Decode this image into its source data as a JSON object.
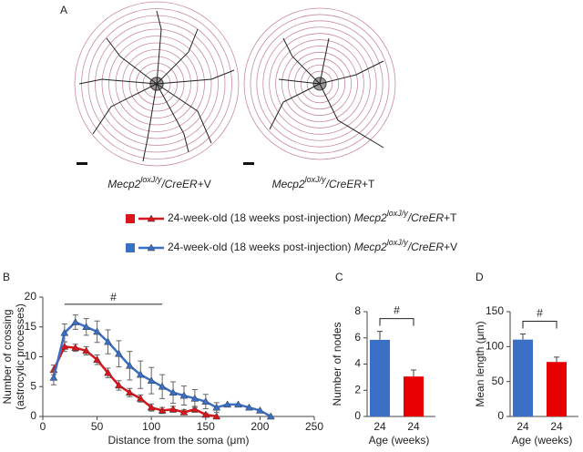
{
  "figure": {
    "panel_labels": [
      "A",
      "B",
      "C",
      "D"
    ],
    "images": [
      {
        "gene": "Mecp2",
        "sup": "loxJ/y",
        "rest": "/CreER",
        "suffix": "+V"
      },
      {
        "gene": "Mecp2",
        "sup": "loxJ/y",
        "rest": "/CreER",
        "suffix": "+T"
      }
    ]
  },
  "chart_data": [
    {
      "type": "line",
      "xlabel": "Distance from the soma (μm)",
      "ylabel": [
        "Number of crossing",
        "(astrocytic processes)"
      ],
      "xlim": [
        0,
        250
      ],
      "xticks": [
        0,
        50,
        100,
        150,
        200,
        250
      ],
      "ylim": [
        0,
        20
      ],
      "yticks": [
        0,
        5,
        10,
        15,
        20
      ],
      "annotation": {
        "text": "#",
        "x": [
          20,
          110
        ],
        "y": 18.8
      },
      "series": [
        {
          "name": "24-week-old (18 weeks post-injection)",
          "genotype": {
            "gene": "Mecp2",
            "sup": "loxJ/y",
            "rest": "/CreER",
            "suffix": "+T"
          },
          "color": "#d9141b",
          "x": [
            10,
            20,
            30,
            40,
            50,
            60,
            70,
            80,
            90,
            100,
            110,
            120,
            130,
            140,
            150,
            160
          ],
          "values": [
            7.8,
            11.7,
            11.5,
            11,
            9.5,
            7.3,
            5.2,
            4,
            3,
            1.5,
            1,
            1.2,
            0.7,
            1.2,
            0.3,
            0
          ],
          "errors": [
            0.8,
            0.8,
            0.6,
            0.7,
            0.8,
            0.8,
            0.8,
            0.7,
            0.6,
            0.6,
            0.5,
            0.5,
            0.4,
            0.5,
            0.3,
            0
          ]
        },
        {
          "name": "24-week-old (18 weeks post-injection)",
          "genotype": {
            "gene": "Mecp2",
            "sup": "loxJ/y",
            "rest": "/CreER",
            "suffix": "+V"
          },
          "color": "#3b6fc6",
          "x": [
            10,
            20,
            30,
            40,
            50,
            60,
            70,
            80,
            90,
            100,
            110,
            120,
            130,
            140,
            150,
            160,
            170,
            180,
            190,
            200,
            210
          ],
          "values": [
            6.5,
            14,
            15.8,
            15,
            14.2,
            12.5,
            10.5,
            8.5,
            7,
            6,
            5,
            4,
            3.5,
            3,
            2.5,
            1.5,
            2,
            2,
            1.5,
            1,
            0
          ],
          "errors": [
            1.2,
            1.5,
            1.2,
            1.4,
            1.8,
            2,
            2.2,
            2.4,
            2.3,
            2.2,
            2,
            1.8,
            1.6,
            1.5,
            1.2,
            0.8,
            0,
            0,
            0,
            0,
            0
          ]
        }
      ]
    },
    {
      "type": "bar",
      "categories": [
        "24",
        "24"
      ],
      "xlabel": "Age (weeks)",
      "ylabel": "Number of nodes",
      "values": [
        5.85,
        3.05
      ],
      "errors": [
        0.65,
        0.5
      ],
      "colors": [
        "#3b6fc6",
        "#e60000"
      ],
      "ylim": [
        0,
        8
      ],
      "yticks": [
        0,
        2,
        4,
        6,
        8
      ],
      "annotation": "#"
    },
    {
      "type": "bar",
      "categories": [
        "24",
        "24"
      ],
      "xlabel": "Age (weeks)",
      "ylabel": "Mean length (μm)",
      "values": [
        110,
        78
      ],
      "errors": [
        8,
        7
      ],
      "colors": [
        "#3b6fc6",
        "#e60000"
      ],
      "ylim": [
        0,
        150
      ],
      "yticks": [
        0,
        50,
        100,
        150
      ],
      "annotation": "#"
    }
  ]
}
